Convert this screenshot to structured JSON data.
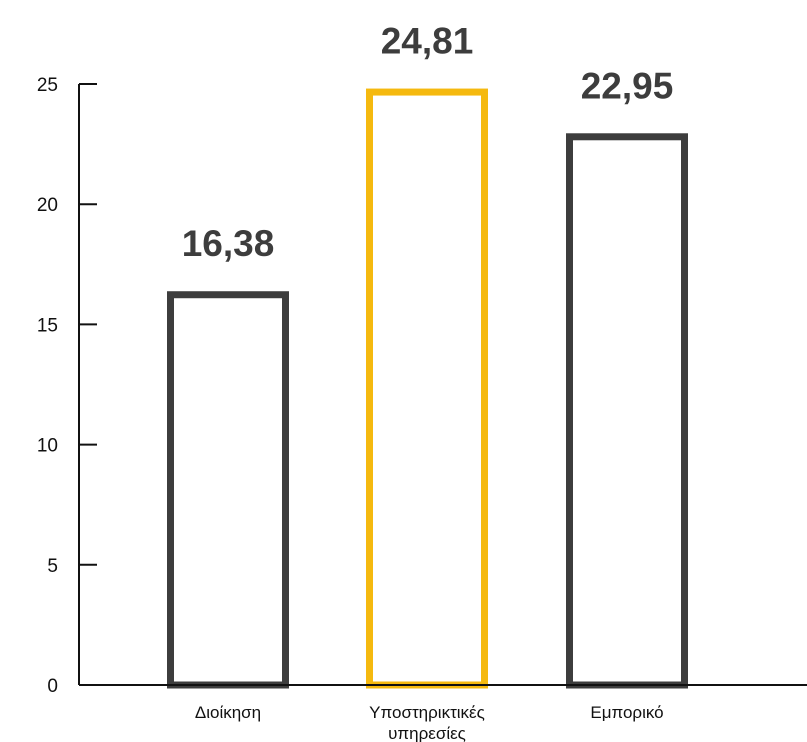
{
  "chart_data": {
    "type": "bar",
    "categories": [
      "Διοίκηση",
      "Υποστηρικτικές υπηρεσίες",
      "Εμπορικό"
    ],
    "category_lines": [
      [
        "Διοίκηση"
      ],
      [
        "Υποστηρικτικές",
        "υπηρεσίες"
      ],
      [
        "Εμπορικό"
      ]
    ],
    "values": [
      16.38,
      24.81,
      22.95
    ],
    "value_labels": [
      "16,38",
      "24,81",
      "22,95"
    ],
    "ylim": [
      0,
      25
    ],
    "yticks": [
      0,
      5,
      10,
      15,
      20,
      25
    ],
    "ytick_labels": [
      "0",
      "5",
      "10",
      "15",
      "20",
      "25"
    ],
    "bar_colors": [
      "#3d3d3d",
      "#f5b90f",
      "#3d3d3d"
    ],
    "bar_fill": "#ffffff",
    "axis_color": "#111111",
    "label_color": "#3d3d3d",
    "grid": false,
    "legend": "none"
  }
}
